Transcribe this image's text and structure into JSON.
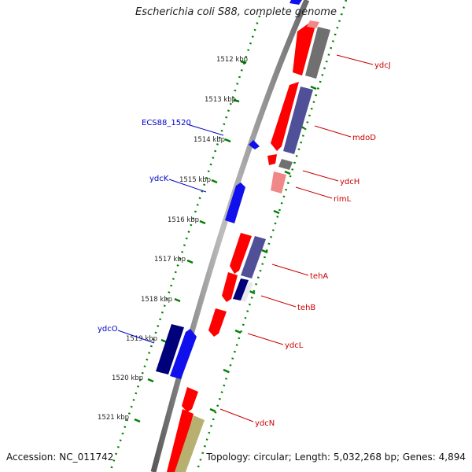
{
  "title": "Escherichia coli S88, complete genome",
  "footer": {
    "accession": "Accession: NC_011742",
    "summary": "Topology: circular; Length: 5,032,268 bp; Genes: 4,894"
  },
  "colors": {
    "forward_cds": "#ff0000",
    "reverse_cds": "#1010ee",
    "dark_blue": "#00007a",
    "slate": "#505098",
    "grey": "#707070",
    "pink": "#f08888",
    "olive": "#b8b070",
    "tick": "#008000",
    "backbone": "#888888",
    "label_red": "#cc0000",
    "label_blue": "#0000cc"
  },
  "kbp_labels": [
    "1512 kbp",
    "1513 kbp",
    "1514 kbp",
    "1515 kbp",
    "1516 kbp",
    "1517 kbp",
    "1518 kbp",
    "1519 kbp",
    "1520 kbp",
    "1521 kbp"
  ],
  "gene_labels": {
    "right": [
      "ydcJ",
      "mdoD",
      "ydcH",
      "rimL",
      "tehA",
      "tehB",
      "ydcL",
      "ydcN"
    ],
    "left": [
      "ECS88_1520",
      "ydcK",
      "ydcO"
    ]
  }
}
